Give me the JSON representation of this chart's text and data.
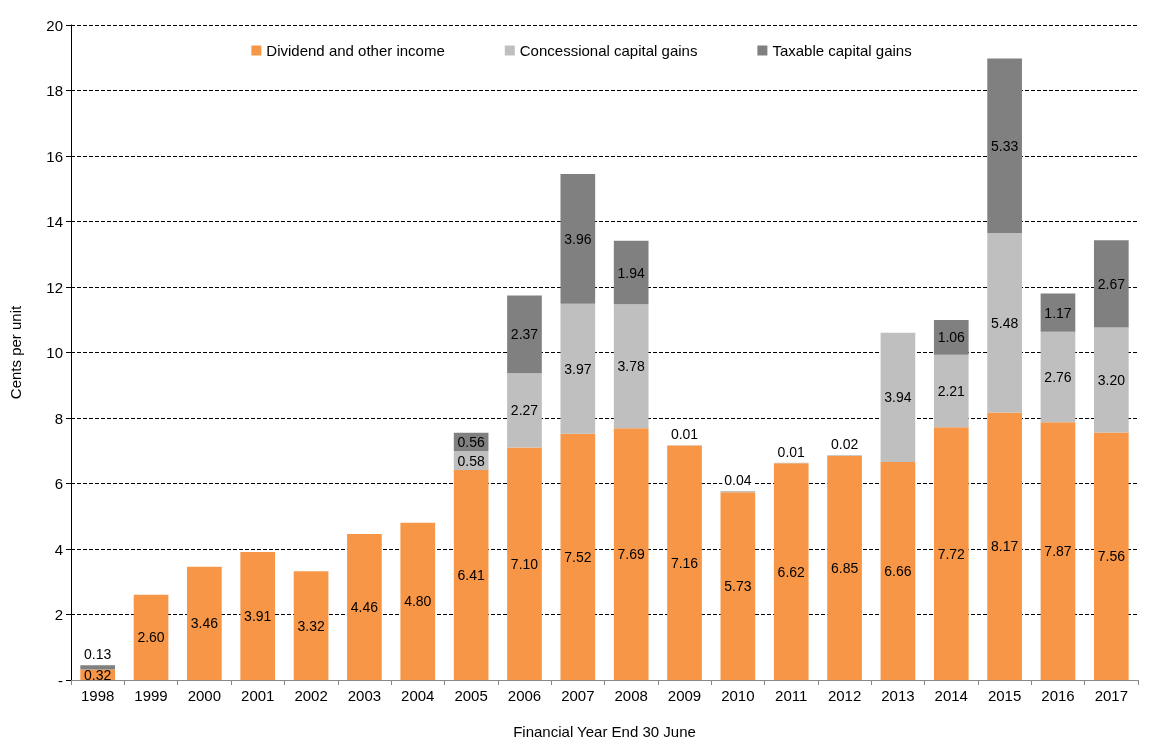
{
  "chart_data": {
    "type": "bar",
    "stacked": true,
    "xlabel": "Financial Year End 30 June",
    "ylabel": "Cents per unit",
    "categories": [
      "1998",
      "1999",
      "2000",
      "2001",
      "2002",
      "2003",
      "2004",
      "2005",
      "2006",
      "2007",
      "2008",
      "2009",
      "2010",
      "2011",
      "2012",
      "2013",
      "2014",
      "2015",
      "2016",
      "2017"
    ],
    "series": [
      {
        "name": "Dividend and other income",
        "color": "#f79646",
        "values": [
          0.32,
          2.6,
          3.46,
          3.91,
          3.32,
          4.46,
          4.8,
          6.41,
          7.1,
          7.52,
          7.69,
          7.16,
          5.73,
          6.62,
          6.85,
          6.66,
          7.72,
          8.17,
          7.87,
          7.56
        ],
        "value_labels": [
          "0.32",
          "2.60",
          "3.46",
          "3.91",
          "3.32",
          "4.46",
          "4.80",
          "6.41",
          "7.10",
          "7.52",
          "7.69",
          "7.16",
          "5.73",
          "6.62",
          "6.85",
          "6.66",
          "7.72",
          "8.17",
          "7.87",
          "7.56"
        ]
      },
      {
        "name": "Concessional capital gains",
        "color": "#bfbfbf",
        "values": [
          null,
          null,
          null,
          null,
          null,
          null,
          null,
          0.58,
          2.27,
          3.97,
          3.78,
          0.01,
          0.04,
          0.01,
          0.02,
          3.94,
          2.21,
          5.48,
          2.76,
          3.2
        ],
        "value_labels": [
          null,
          null,
          null,
          null,
          null,
          null,
          null,
          "0.58",
          "2.27",
          "3.97",
          "3.78",
          "0.01",
          "0.04",
          "0.01",
          "0.02",
          "3.94",
          "2.21",
          "5.48",
          "2.76",
          "3.20"
        ]
      },
      {
        "name": "Taxable capital gains",
        "color": "#808080",
        "values": [
          0.13,
          null,
          null,
          null,
          null,
          null,
          null,
          0.56,
          2.37,
          3.96,
          1.94,
          null,
          null,
          null,
          null,
          null,
          1.06,
          5.33,
          1.17,
          2.67
        ],
        "value_labels": [
          "0.13",
          null,
          null,
          null,
          null,
          null,
          null,
          "0.56",
          "2.37",
          "3.96",
          "1.94",
          null,
          null,
          null,
          null,
          null,
          "1.06",
          "5.33",
          "1.17",
          "2.67"
        ]
      }
    ],
    "ylim": [
      0,
      20
    ],
    "yticks": [
      {
        "value": 0,
        "label": "-"
      },
      2,
      4,
      6,
      8,
      10,
      12,
      14,
      16,
      18,
      20
    ],
    "grid": "y",
    "legend": "top"
  }
}
